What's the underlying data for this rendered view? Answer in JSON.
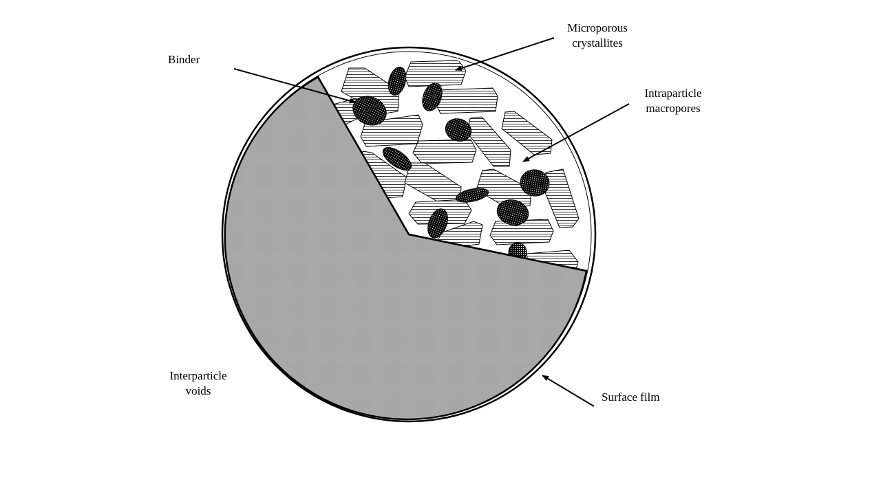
{
  "labels": {
    "binder": "Binder",
    "microporous_1": "Microporous",
    "microporous_2": "crystallites",
    "intraparticle_1": "Intraparticle",
    "intraparticle_2": "macropores",
    "interparticle_1": "Interparticle",
    "interparticle_2": "voids",
    "surface_film": "Surface film"
  },
  "colors": {
    "void_fill": "#a9a9a9",
    "stroke": "#000000",
    "background": "#ffffff"
  }
}
